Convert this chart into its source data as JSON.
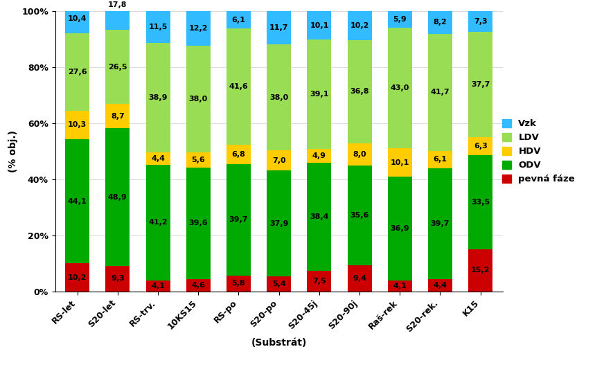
{
  "categories": [
    "RS-let",
    "S20-let",
    "RS-trv.",
    "10KS15",
    "RS-po",
    "S20-po",
    "S20-45j",
    "S20-90j",
    "Raš-rek",
    "S20-rek.",
    "K15"
  ],
  "pevna_faze": [
    10.2,
    9.3,
    4.1,
    4.6,
    5.8,
    5.4,
    7.5,
    9.4,
    4.1,
    4.4,
    15.2
  ],
  "ODV": [
    44.1,
    48.9,
    41.2,
    39.6,
    39.7,
    37.9,
    38.4,
    35.6,
    36.9,
    39.7,
    33.5
  ],
  "HDV": [
    10.3,
    8.7,
    4.4,
    5.6,
    6.8,
    7.0,
    4.9,
    8.0,
    10.1,
    6.1,
    6.3
  ],
  "LDV": [
    27.6,
    26.5,
    38.9,
    38.0,
    41.6,
    38.0,
    39.1,
    36.8,
    43.0,
    41.7,
    37.7
  ],
  "Vzk": [
    10.4,
    17.8,
    11.5,
    12.2,
    6.1,
    11.7,
    10.1,
    10.2,
    5.9,
    8.2,
    7.3
  ],
  "colors": {
    "pevna_faze": "#cc0000",
    "ODV": "#00aa00",
    "HDV": "#ffcc00",
    "LDV": "#99dd55",
    "Vzk": "#33bbff"
  },
  "ylabel": "(% obj.)",
  "xlabel": "(Substrát)",
  "ylim": [
    0,
    100
  ],
  "ytick_labels": [
    "0%",
    "20%",
    "40%",
    "60%",
    "80%",
    "100%"
  ],
  "bar_width": 0.6,
  "label_fontsize": 8.0,
  "axis_label_fontsize": 10,
  "tick_label_fontsize": 9
}
